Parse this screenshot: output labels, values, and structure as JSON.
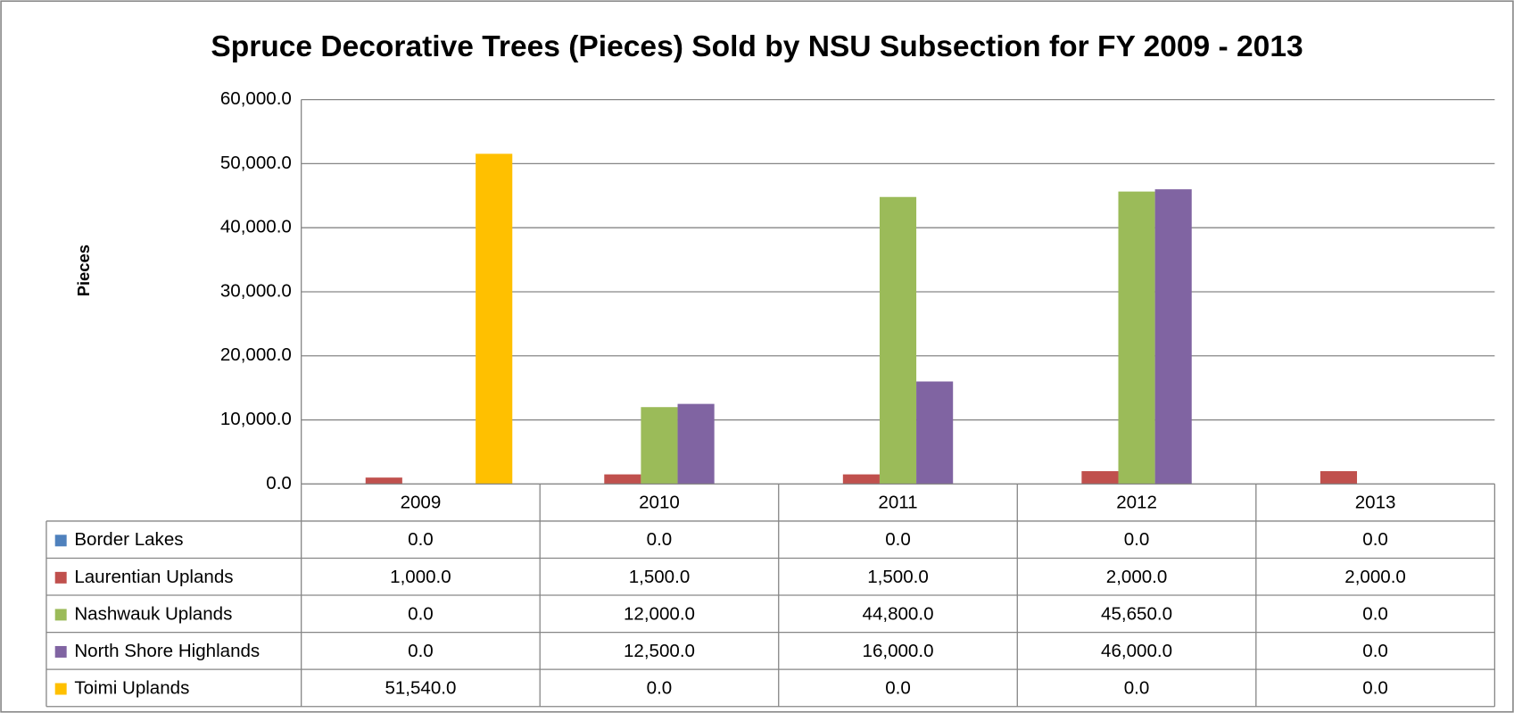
{
  "chart_data": {
    "type": "bar",
    "title": "Spruce Decorative Trees (Pieces) Sold by NSU Subsection for FY 2009 - 2013",
    "y_label": "Pieces",
    "categories": [
      "2009",
      "2010",
      "2011",
      "2012",
      "2013"
    ],
    "series": [
      {
        "name": "Border Lakes",
        "color": "#4f81bd",
        "values": [
          0,
          0,
          0,
          0,
          0
        ],
        "value_labels": [
          "0.0",
          "0.0",
          "0.0",
          "0.0",
          "0.0"
        ]
      },
      {
        "name": "Laurentian Uplands",
        "color": "#c0504d",
        "values": [
          1000,
          1500,
          1500,
          2000,
          2000
        ],
        "value_labels": [
          "1,000.0",
          "1,500.0",
          "1,500.0",
          "2,000.0",
          "2,000.0"
        ]
      },
      {
        "name": "Nashwauk Uplands",
        "color": "#9bbb59",
        "values": [
          0,
          12000,
          44800,
          45650,
          0
        ],
        "value_labels": [
          "0.0",
          "12,000.0",
          "44,800.0",
          "45,650.0",
          "0.0"
        ]
      },
      {
        "name": "North Shore Highlands",
        "color": "#8064a2",
        "values": [
          0,
          12500,
          16000,
          46000,
          0
        ],
        "value_labels": [
          "0.0",
          "12,500.0",
          "16,000.0",
          "46,000.0",
          "0.0"
        ]
      },
      {
        "name": "Toimi Uplands",
        "color": "#ffc000",
        "values": [
          51540,
          0,
          0,
          0,
          0
        ],
        "value_labels": [
          "51,540.0",
          "0.0",
          "0.0",
          "0.0",
          "0.0"
        ]
      }
    ],
    "ylim": [
      0,
      60000
    ],
    "yticks": [
      {
        "value": 0,
        "label": "0.0"
      },
      {
        "value": 10000,
        "label": "10,000.0"
      },
      {
        "value": 20000,
        "label": "20,000.0"
      },
      {
        "value": 30000,
        "label": "30,000.0"
      },
      {
        "value": 40000,
        "label": "40,000.0"
      },
      {
        "value": 50000,
        "label": "50,000.0"
      },
      {
        "value": 60000,
        "label": "60,000.0"
      }
    ],
    "grid": true
  }
}
